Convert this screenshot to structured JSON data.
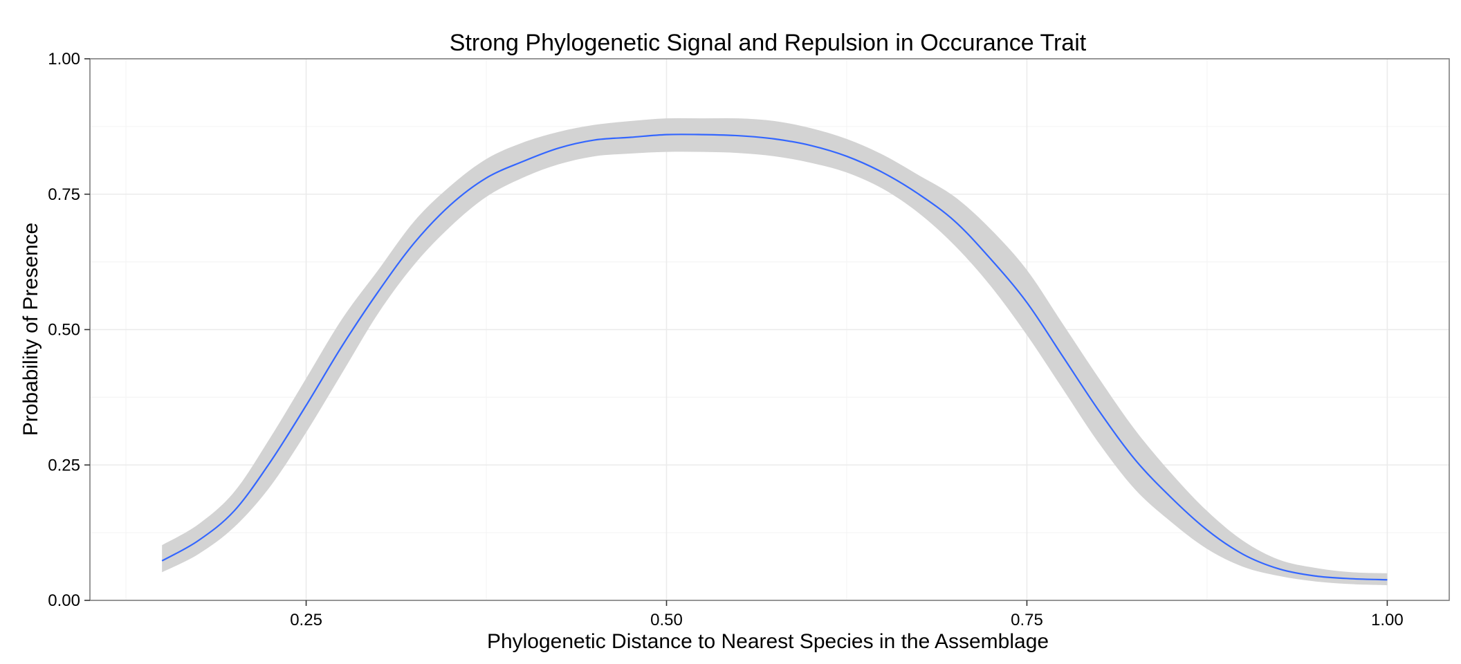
{
  "chart_data": {
    "type": "line",
    "title": "Strong Phylogenetic Signal and Repulsion in Occurance Trait",
    "xlabel": "Phylogenetic Distance to Nearest Species in the Assemblage",
    "ylabel": "Probability of Presence",
    "xlim": [
      0.1,
      1.043
    ],
    "ylim": [
      0.0,
      1.0
    ],
    "x_ticks": [
      0.25,
      0.5,
      0.75,
      1.0
    ],
    "x_tick_labels": [
      "0.25",
      "0.50",
      "0.75",
      "1.00"
    ],
    "y_ticks": [
      0.0,
      0.25,
      0.5,
      0.75,
      1.0
    ],
    "y_tick_labels": [
      "0.00",
      "0.25",
      "0.50",
      "0.75",
      "1.00"
    ],
    "grid": true,
    "line_color": "#3366ff",
    "ribbon_color": "#d3d3d3",
    "series": [
      {
        "x": [
          0.15,
          0.175,
          0.2,
          0.225,
          0.25,
          0.275,
          0.3,
          0.325,
          0.35,
          0.375,
          0.4,
          0.425,
          0.45,
          0.475,
          0.5,
          0.525,
          0.55,
          0.575,
          0.6,
          0.625,
          0.65,
          0.675,
          0.7,
          0.725,
          0.75,
          0.775,
          0.8,
          0.825,
          0.85,
          0.875,
          0.9,
          0.925,
          0.95,
          0.975,
          1.0
        ],
        "y": [
          0.073,
          0.11,
          0.165,
          0.255,
          0.36,
          0.47,
          0.57,
          0.66,
          0.73,
          0.78,
          0.81,
          0.835,
          0.85,
          0.855,
          0.86,
          0.86,
          0.858,
          0.852,
          0.84,
          0.82,
          0.79,
          0.75,
          0.7,
          0.63,
          0.55,
          0.45,
          0.35,
          0.26,
          0.19,
          0.13,
          0.085,
          0.058,
          0.045,
          0.04,
          0.038
        ],
        "lower": [
          0.052,
          0.085,
          0.135,
          0.21,
          0.31,
          0.42,
          0.53,
          0.62,
          0.69,
          0.745,
          0.78,
          0.805,
          0.82,
          0.825,
          0.828,
          0.828,
          0.826,
          0.82,
          0.808,
          0.79,
          0.76,
          0.715,
          0.655,
          0.58,
          0.49,
          0.39,
          0.29,
          0.205,
          0.145,
          0.095,
          0.062,
          0.045,
          0.035,
          0.03,
          0.028
        ],
        "upper": [
          0.102,
          0.14,
          0.2,
          0.3,
          0.41,
          0.52,
          0.61,
          0.7,
          0.765,
          0.815,
          0.845,
          0.865,
          0.878,
          0.885,
          0.89,
          0.89,
          0.89,
          0.885,
          0.872,
          0.852,
          0.823,
          0.785,
          0.745,
          0.685,
          0.61,
          0.51,
          0.41,
          0.315,
          0.235,
          0.165,
          0.11,
          0.075,
          0.06,
          0.052,
          0.05
        ]
      }
    ]
  }
}
